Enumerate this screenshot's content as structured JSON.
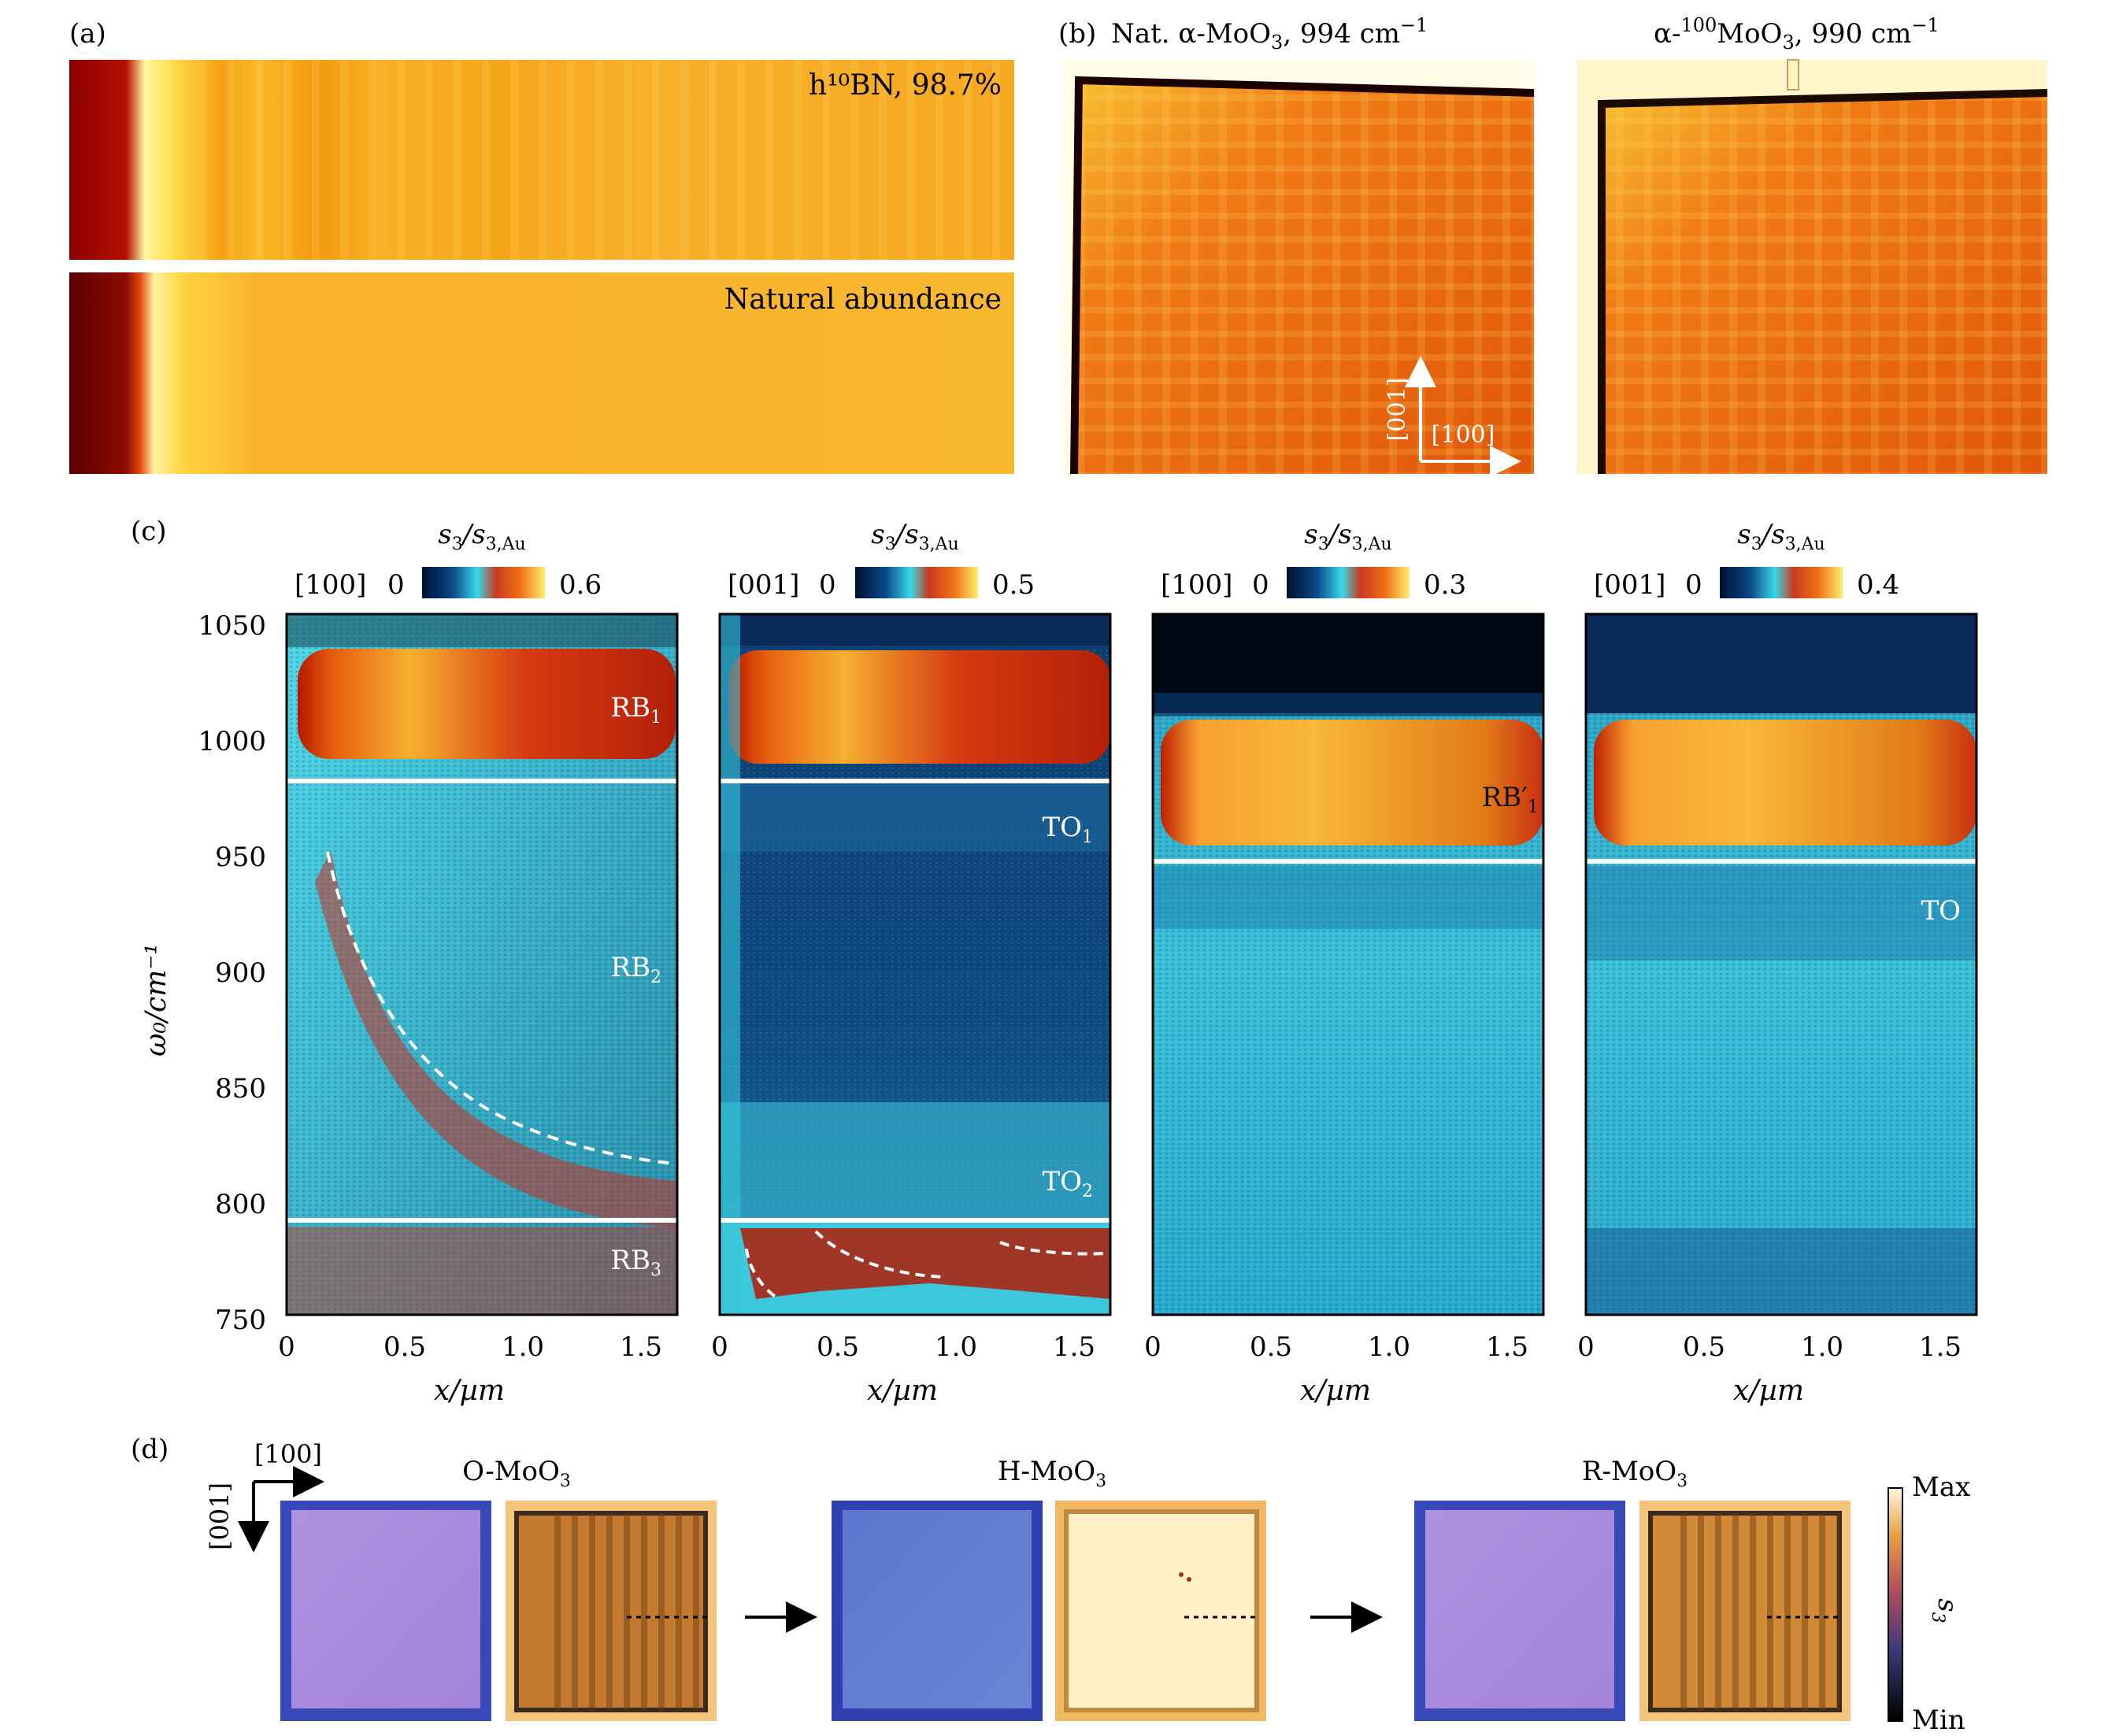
{
  "panel_labels": {
    "a": "(a)",
    "b": "(b)",
    "c": "(c)",
    "d": "(d)"
  },
  "panel_a": {
    "top_label": "h¹⁰BN, 98.7%",
    "bottom_label": "Natural abundance"
  },
  "panel_b": {
    "left_title_prefix": "Nat. α-MoO",
    "left_title_suffix": ", 994 cm",
    "right_title_prefix": "α-",
    "right_title_iso": "100",
    "right_title_mid": "MoO",
    "right_title_suffix": ", 990 cm",
    "subscript_3": "3",
    "superscript_minus1": "−1",
    "axis_vertical": "[001]",
    "axis_horizontal": "[100]"
  },
  "panel_c": {
    "colorbar_title_main": "s",
    "colorbar_title_sub": "3",
    "colorbar_title_den": "/s",
    "colorbar_title_den_sub": "3,Au",
    "ylabel": "ω₀/cm⁻¹",
    "xlabel": "x/µm",
    "subpanels": [
      {
        "direction": "[100]",
        "cmin": "0",
        "cmax": "0.6",
        "labels": [
          {
            "text": "RB",
            "sub": "1"
          },
          {
            "text": "RB",
            "sub": "2"
          },
          {
            "text": "RB",
            "sub": "3"
          }
        ]
      },
      {
        "direction": "[001]",
        "cmin": "0",
        "cmax": "0.5",
        "labels": [
          {
            "text": "TO",
            "sub": "1"
          },
          {
            "text": "TO",
            "sub": "2"
          }
        ]
      },
      {
        "direction": "[100]",
        "cmin": "0",
        "cmax": "0.3",
        "labels": [
          {
            "text": "RB′",
            "sub": "1"
          }
        ]
      },
      {
        "direction": "[001]",
        "cmin": "0",
        "cmax": "0.4",
        "labels": [
          {
            "text": "TO",
            "sub": ""
          }
        ]
      }
    ]
  },
  "chart_data": [
    {
      "type": "heatmap",
      "title": "[100] s3/s3,Au",
      "xlabel": "x/µm",
      "ylabel": "ω0/cm−1",
      "xlim": [
        0,
        1.65
      ],
      "ylim": [
        750,
        1055
      ],
      "xticks": [
        "0",
        "0.5",
        "1.0",
        "1.5"
      ],
      "yticks": [
        "750",
        "800",
        "850",
        "900",
        "950",
        "1000",
        "1050"
      ],
      "color_range": [
        0,
        0.6
      ],
      "reference_lines_cm1": [
        980,
        790
      ],
      "annotations": [
        "RB1",
        "RB2",
        "RB3"
      ]
    },
    {
      "type": "heatmap",
      "title": "[001] s3/s3,Au",
      "xlabel": "x/µm",
      "xlim": [
        0,
        1.65
      ],
      "ylim": [
        750,
        1055
      ],
      "xticks": [
        "0",
        "0.5",
        "1.0",
        "1.5"
      ],
      "color_range": [
        0,
        0.5
      ],
      "reference_lines_cm1": [
        980,
        790
      ],
      "annotations": [
        "TO1",
        "TO2"
      ]
    },
    {
      "type": "heatmap",
      "title": "[100] s3/s3,Au",
      "xlabel": "x/µm",
      "xlim": [
        0,
        1.65
      ],
      "ylim": [
        750,
        1055
      ],
      "xticks": [
        "0",
        "0.5",
        "1.0",
        "1.5"
      ],
      "color_range": [
        0,
        0.3
      ],
      "reference_lines_cm1": [
        946
      ],
      "annotations": [
        "RB′1"
      ]
    },
    {
      "type": "heatmap",
      "title": "[001] s3/s3,Au",
      "xlabel": "x/µm",
      "xlim": [
        0,
        1.65
      ],
      "ylim": [
        750,
        1055
      ],
      "xticks": [
        "0",
        "0.5",
        "1.0",
        "1.5"
      ],
      "color_range": [
        0,
        0.4
      ],
      "reference_lines_cm1": [
        946
      ],
      "annotations": [
        "TO"
      ]
    }
  ],
  "panel_d": {
    "axis_horizontal": "[100]",
    "axis_vertical": "[001]",
    "stages": [
      {
        "name": "O-MoO",
        "sub": "3"
      },
      {
        "name": "H-MoO",
        "sub": "3"
      },
      {
        "name": "R-MoO",
        "sub": "3"
      }
    ],
    "colorbar_max": "Max",
    "colorbar_min": "Min",
    "colorbar_label_main": "s",
    "colorbar_label_sub": "3"
  }
}
